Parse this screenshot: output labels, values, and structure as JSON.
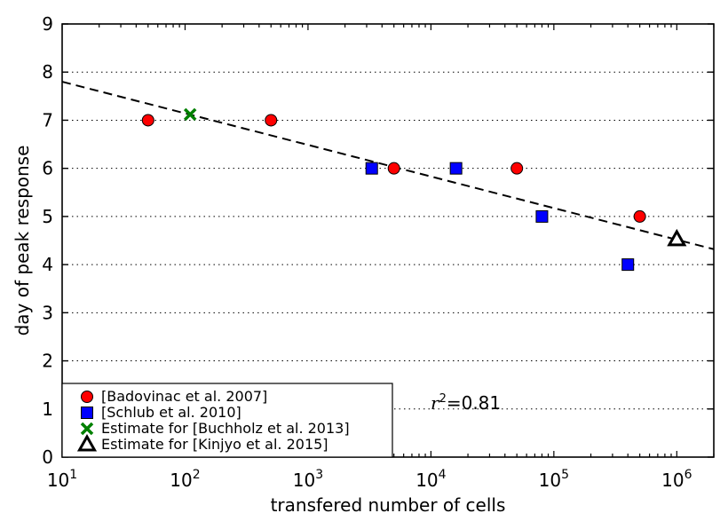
{
  "chart_data": {
    "type": "scatter",
    "title": "",
    "xlabel": "transfered number of cells",
    "ylabel": "day of peak response",
    "xscale": "log",
    "xlim": [
      10,
      2000000
    ],
    "ylim": [
      0,
      9
    ],
    "grid": "horizontal dotted",
    "x_ticks": [
      {
        "value": 10,
        "base": "10",
        "exp": "1"
      },
      {
        "value": 100,
        "base": "10",
        "exp": "2"
      },
      {
        "value": 1000,
        "base": "10",
        "exp": "3"
      },
      {
        "value": 10000,
        "base": "10",
        "exp": "4"
      },
      {
        "value": 100000,
        "base": "10",
        "exp": "5"
      },
      {
        "value": 1000000,
        "base": "10",
        "exp": "6"
      }
    ],
    "y_ticks": [
      "0",
      "1",
      "2",
      "3",
      "4",
      "5",
      "6",
      "7",
      "8",
      "9"
    ],
    "series": [
      {
        "name": "[Badovinac et al. 2007]",
        "marker": "circle",
        "color": "#ff0000",
        "x": [
          50,
          500,
          5000,
          50000,
          500000
        ],
        "y": [
          7,
          7,
          6,
          6,
          5
        ]
      },
      {
        "name": "[Schlub et al. 2010]",
        "marker": "square",
        "color": "#0000ff",
        "x": [
          3300,
          16000,
          80000,
          400000
        ],
        "y": [
          6,
          6,
          5,
          4
        ]
      },
      {
        "name": "Estimate for [Buchholz et al. 2013]",
        "marker": "x",
        "color": "#008000",
        "x": [
          110
        ],
        "y": [
          7.12
        ]
      },
      {
        "name": "Estimate for [Kinjyo et al. 2015]",
        "marker": "triangle",
        "color": "#ffffff",
        "x": [
          1000000
        ],
        "y": [
          4.52
        ]
      }
    ],
    "fit_line": {
      "style": "dashed",
      "color": "#000000",
      "x": [
        10,
        2000000
      ],
      "y": [
        7.8,
        4.32
      ]
    },
    "annotation": {
      "symbol": "r",
      "power": "2",
      "value": "=0.81"
    },
    "legend_position": "lower-left"
  }
}
